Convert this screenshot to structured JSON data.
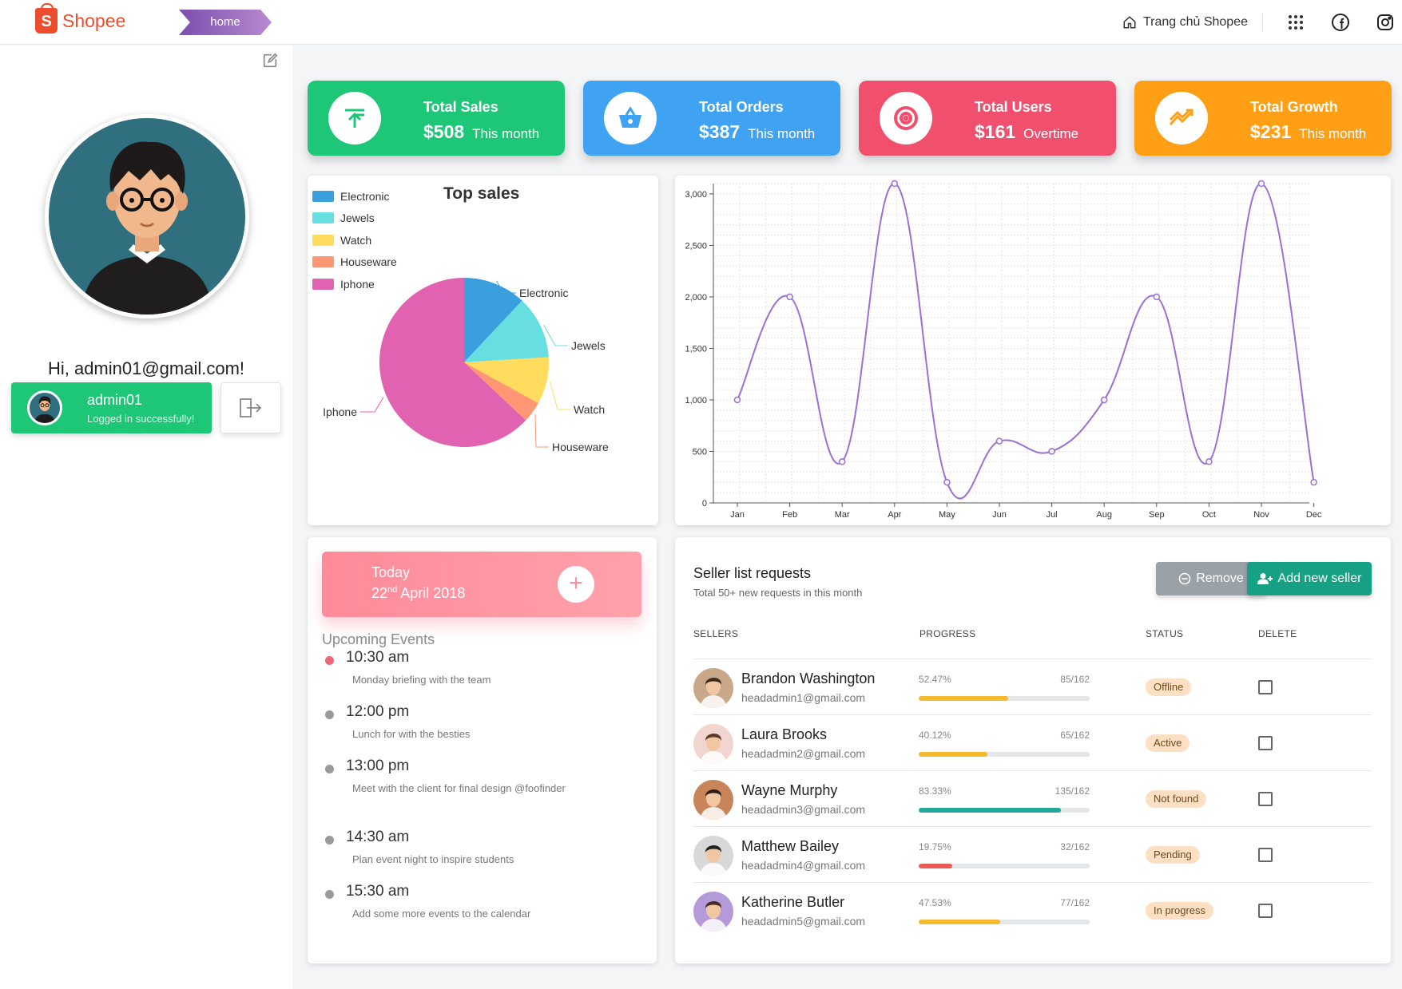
{
  "header": {
    "logo_text": "Shopee",
    "breadcrumb": "home",
    "home_link": "Trang chủ Shopee"
  },
  "sidebar": {
    "greeting": "Hi, admin01@gmail.com!",
    "username": "admin01",
    "login_status": "Logged in successfully!"
  },
  "stats": [
    {
      "title": "Total Sales",
      "value": "$508",
      "period": "This month",
      "color": "#1ec677",
      "icon": "arrow-up-icon"
    },
    {
      "title": "Total Orders",
      "value": "$387",
      "period": "This month",
      "color": "#3fa2f2",
      "icon": "basket-icon"
    },
    {
      "title": "Total Users",
      "value": "$161",
      "period": "Overtime",
      "color": "#f0506e",
      "icon": "target-icon"
    },
    {
      "title": "Total Growth",
      "value": "$231",
      "period": "This month",
      "color": "#ff9f16",
      "icon": "trend-icon"
    }
  ],
  "pie_chart": {
    "title": "Top sales",
    "legend": [
      "Electronic",
      "Jewels",
      "Watch",
      "Houseware",
      "Iphone"
    ]
  },
  "chart_data": [
    {
      "type": "pie",
      "title": "Top sales",
      "labels": [
        "Electronic",
        "Jewels",
        "Watch",
        "Houseware",
        "Iphone"
      ],
      "values": [
        12,
        12,
        9,
        4,
        63
      ],
      "colors": [
        "#3aa0dd",
        "#67dfe0",
        "#ffdc5e",
        "#ff9775",
        "#e062b0"
      ],
      "legend_position": "top-left"
    },
    {
      "type": "line",
      "categories": [
        "Jan",
        "Feb",
        "Mar",
        "Apr",
        "May",
        "Jun",
        "Jul",
        "Aug",
        "Sep",
        "Oct",
        "Nov",
        "Dec"
      ],
      "values": [
        1000,
        2000,
        400,
        3100,
        200,
        600,
        500,
        1000,
        2000,
        400,
        3100,
        200
      ],
      "ylim": [
        0,
        3100
      ],
      "yticks": [
        0,
        500,
        1000,
        1500,
        2000,
        2500,
        3000
      ],
      "ytick_labels": [
        "0",
        "500",
        "1,000",
        "1,500",
        "2,000",
        "2,500",
        "3,000"
      ],
      "grid": true,
      "color": "#9b6fd6"
    }
  ],
  "events": {
    "today_label": "Today",
    "date_day": "22",
    "date_suffix": "nd",
    "date_rest": " April 2018",
    "add_label": "+",
    "heading": "Upcoming Events",
    "items": [
      {
        "time": "10:30 am",
        "desc": "Monday briefing with the team",
        "dot": "#f0647a"
      },
      {
        "time": "12:00 pm",
        "desc": "Lunch for with the besties",
        "dot": "#9a9a9a"
      },
      {
        "time": "13:00 pm",
        "desc": "Meet with the client for final design @foofinder",
        "dot": "#9a9a9a"
      },
      {
        "time": "14:30 am",
        "desc": "Plan event night to inspire students",
        "dot": "#9a9a9a"
      },
      {
        "time": "15:30 am",
        "desc": "Add some more events to the calendar",
        "dot": "#9a9a9a"
      }
    ]
  },
  "sellers": {
    "title": "Seller list requests",
    "subtitle": "Total 50+ new requests in this month",
    "remove_label": "Remove",
    "add_label": "Add new seller",
    "columns": [
      "SELLERS",
      "PROGRESS",
      "STATUS",
      "DELETE"
    ],
    "rows": [
      {
        "name": "Brandon Washington",
        "email": "headadmin1@gmail.com",
        "pct": "52.47%",
        "count": "85/162",
        "progress": 0.5247,
        "bar_color": "#f6b82c",
        "status": "Offline",
        "avatar_bg": "#c9a88a",
        "hair": "#3a2a20"
      },
      {
        "name": "Laura Brooks",
        "email": "headadmin2@gmail.com",
        "pct": "40.12%",
        "count": "65/162",
        "progress": 0.4012,
        "bar_color": "#f6b82c",
        "status": "Active",
        "avatar_bg": "#f0d6cf",
        "hair": "#5b3a2c"
      },
      {
        "name": "Wayne Murphy",
        "email": "headadmin3@gmail.com",
        "pct": "83.33%",
        "count": "135/162",
        "progress": 0.8333,
        "bar_color": "#22a89a",
        "status": "Not found",
        "avatar_bg": "#c8855a",
        "hair": "#2b1d16"
      },
      {
        "name": "Matthew Bailey",
        "email": "headadmin4@gmail.com",
        "pct": "19.75%",
        "count": "32/162",
        "progress": 0.1975,
        "bar_color": "#ec5a55",
        "status": "Pending",
        "avatar_bg": "#d8d8d8",
        "hair": "#222222"
      },
      {
        "name": "Katherine Butler",
        "email": "headadmin5@gmail.com",
        "pct": "47.53%",
        "count": "77/162",
        "progress": 0.4753,
        "bar_color": "#f6b82c",
        "status": "In progress",
        "avatar_bg": "#b49ad8",
        "hair": "#4a2e22"
      }
    ]
  }
}
